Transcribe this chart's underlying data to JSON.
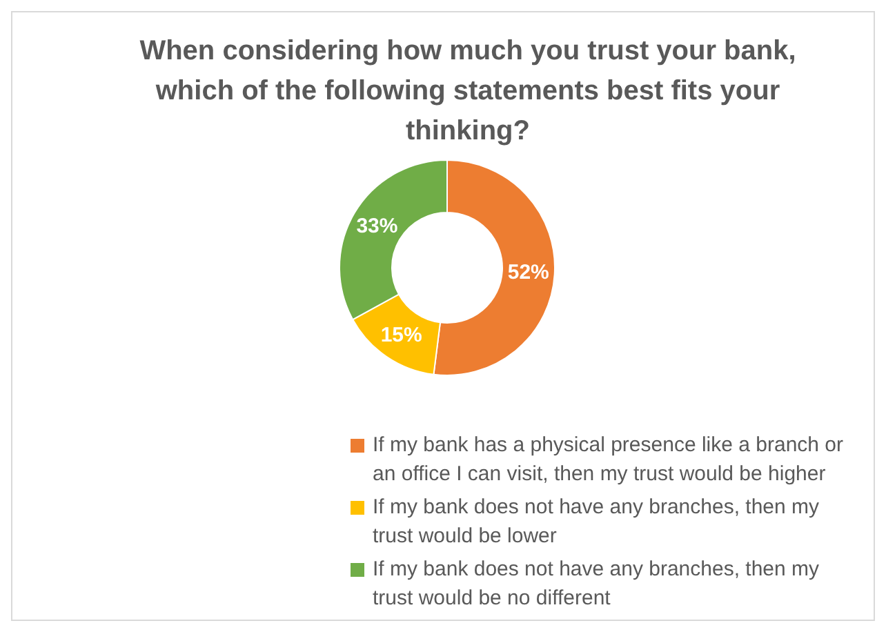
{
  "chart_data": {
    "type": "donut",
    "title": "When considering how much you trust your bank, which of the following statements best fits your thinking?",
    "categories": [
      "If my bank has a physical presence like a branch or an office I can visit, then my trust would be higher",
      "If my bank does not have any branches, then my trust would be lower",
      "If my bank does not have any branches, then my trust would be no different"
    ],
    "values": [
      52,
      15,
      33
    ],
    "colors": [
      "#ed7d31",
      "#ffc000",
      "#70ad47"
    ],
    "value_labels": [
      "52%",
      "15%",
      "33%"
    ],
    "legend": "bottom"
  }
}
